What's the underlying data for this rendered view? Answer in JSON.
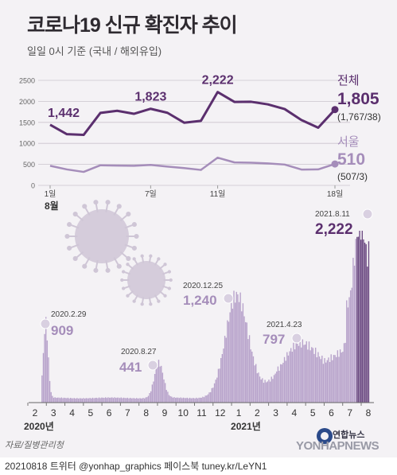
{
  "title": "코로나19 신규 확진자 추이",
  "subtitle": "일일 0시 기준 (국내 / 해외유입)",
  "source": "자료/질병관리청",
  "footer": "20210818 트위터 @yonhap_graphics  페이스북 tuney.kr/LeYN1",
  "logo": {
    "korean": "연합뉴스",
    "english": "YONHAPNEWS"
  },
  "colors": {
    "total": "#5b2f6e",
    "seoul": "#a58dba",
    "bar": "#b8a3cb",
    "bar_recent": "#6e4d84",
    "virus": "#cfc6d6"
  },
  "chart_data": [
    {
      "type": "line",
      "ylim": [
        0,
        2500
      ],
      "yticks": [
        0,
        500,
        1000,
        1500,
        2000,
        2500
      ],
      "x": [
        1,
        2,
        3,
        4,
        5,
        6,
        7,
        8,
        9,
        10,
        11,
        12,
        13,
        14,
        15,
        16,
        17,
        18
      ],
      "xticks": [
        {
          "x": 1,
          "label": "1일"
        },
        {
          "x": 7,
          "label": "7일"
        },
        {
          "x": 11,
          "label": "11일"
        },
        {
          "x": 18,
          "label": "18일"
        }
      ],
      "month_label": "8월",
      "grid": true,
      "series": [
        {
          "name": "전체",
          "values": [
            1442,
            1219,
            1202,
            1725,
            1776,
            1704,
            1823,
            1728,
            1492,
            1536,
            2222,
            1987,
            1990,
            1928,
            1817,
            1556,
            1373,
            1805
          ],
          "end_label": "1,805",
          "end_detail": "(1,767/38)"
        },
        {
          "name": "서울",
          "values": [
            466,
            380,
            321,
            479,
            472,
            467,
            488,
            447,
            411,
            368,
            660,
            547,
            540,
            523,
            496,
            377,
            380,
            510
          ],
          "end_label": "510",
          "end_detail": "(507/3)"
        }
      ],
      "annotations": [
        {
          "x": 1,
          "label": "1,442"
        },
        {
          "x": 7,
          "label": "1,823"
        },
        {
          "x": 11,
          "label": "2,222"
        }
      ]
    },
    {
      "type": "bar",
      "months": [
        "2",
        "3",
        "4",
        "5",
        "6",
        "7",
        "8",
        "9",
        "10",
        "11",
        "12",
        "1",
        "2",
        "3",
        "4",
        "5",
        "6",
        "7",
        "8"
      ],
      "year_labels": [
        {
          "month_index": 0,
          "label": "2020년"
        },
        {
          "month_index": 11,
          "label": "2021년"
        }
      ],
      "ylim": [
        0,
        2400
      ],
      "annotations": [
        {
          "date": "2020.2.29",
          "value": "909"
        },
        {
          "date": "2020.8.27",
          "value": "441"
        },
        {
          "date": "2020.12.25",
          "value": "1,240"
        },
        {
          "date": "2021.4.23",
          "value": "797"
        },
        {
          "date": "2021.8.11",
          "value": "2,222"
        }
      ]
    }
  ]
}
